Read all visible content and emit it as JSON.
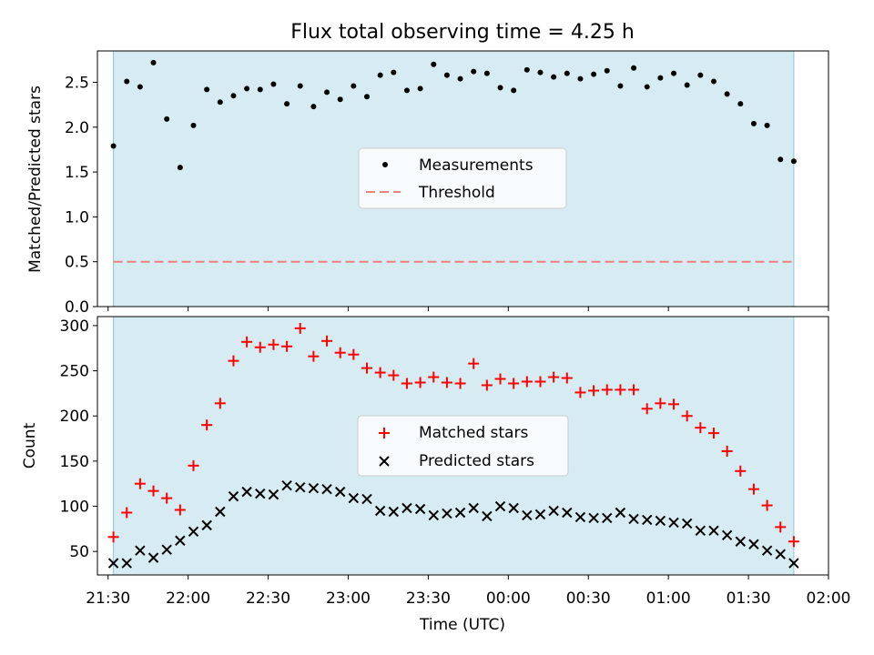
{
  "chart_data": [
    {
      "type": "scatter",
      "title": "Flux total observing time = 4.25 h",
      "xlabel": "",
      "ylabel": "Matched/Predicted stars",
      "ylim": [
        0,
        2.85
      ],
      "yticks": [
        0.0,
        0.5,
        1.0,
        1.5,
        2.0,
        2.5
      ],
      "ytick_labels": [
        "0.0",
        "0.5",
        "1.0",
        "1.5",
        "2.0",
        "2.5"
      ],
      "threshold": 0.5,
      "legend_placement": "center",
      "legend": [
        {
          "label": "Measurements",
          "marker": "dot",
          "color": "#000000"
        },
        {
          "label": "Threshold",
          "marker": "dashed-line",
          "color": "#f08080"
        }
      ],
      "shaded_region": {
        "start": "21:32",
        "end": "01:47",
        "color": "#add8e6"
      },
      "series": [
        {
          "name": "Measurements",
          "values": [
            1.79,
            2.51,
            2.45,
            2.72,
            2.09,
            1.55,
            2.02,
            2.42,
            2.28,
            2.35,
            2.43,
            2.42,
            2.48,
            2.26,
            2.46,
            2.23,
            2.39,
            2.31,
            2.46,
            2.34,
            2.58,
            2.61,
            2.41,
            2.43,
            2.7,
            2.58,
            2.54,
            2.62,
            2.6,
            2.44,
            2.41,
            2.64,
            2.61,
            2.56,
            2.6,
            2.54,
            2.59,
            2.63,
            2.46,
            2.66,
            2.45,
            2.55,
            2.6,
            2.47,
            2.58,
            2.51,
            2.37,
            2.26,
            2.04,
            2.02,
            1.64,
            1.62
          ]
        }
      ]
    },
    {
      "type": "scatter",
      "title": "",
      "xlabel": "Time (UTC)",
      "ylabel": "Count",
      "ylim": [
        24,
        310
      ],
      "yticks": [
        50,
        100,
        150,
        200,
        250,
        300
      ],
      "ytick_labels": [
        "50",
        "100",
        "150",
        "200",
        "250",
        "300"
      ],
      "legend_placement": "center",
      "legend": [
        {
          "label": "Matched stars",
          "marker": "plus",
          "color": "#ff0000"
        },
        {
          "label": "Predicted stars",
          "marker": "x",
          "color": "#000000"
        }
      ],
      "shaded_region": {
        "start": "21:32",
        "end": "01:47",
        "color": "#add8e6"
      },
      "series": [
        {
          "name": "Matched stars",
          "values": [
            66,
            93,
            125,
            117,
            109,
            96,
            145,
            190,
            214,
            261,
            282,
            276,
            279,
            277,
            297,
            266,
            283,
            270,
            268,
            253,
            248,
            245,
            236,
            237,
            243,
            237,
            236,
            258,
            234,
            241,
            236,
            238,
            238,
            243,
            242,
            226,
            228,
            229,
            229,
            229,
            208,
            214,
            213,
            200,
            187,
            181,
            161,
            139,
            119,
            101,
            77,
            61
          ]
        },
        {
          "name": "Predicted stars",
          "values": [
            37,
            37,
            51,
            43,
            52,
            62,
            72,
            79,
            94,
            111,
            116,
            114,
            113,
            123,
            121,
            120,
            119,
            116,
            109,
            108,
            95,
            94,
            98,
            97,
            90,
            92,
            93,
            98,
            89,
            100,
            98,
            90,
            91,
            95,
            93,
            88,
            87,
            87,
            93,
            86,
            85,
            84,
            82,
            81,
            73,
            73,
            68,
            61,
            58,
            51,
            47,
            37
          ]
        }
      ]
    }
  ],
  "time_axis": {
    "start": "21:32",
    "end": "01:47",
    "view_start": "21:26",
    "view_end": "02:00",
    "tick_times": [
      "21:30",
      "22:00",
      "22:30",
      "23:00",
      "23:30",
      "00:00",
      "00:30",
      "01:00",
      "01:30",
      "02:00"
    ],
    "tick_labels": [
      "21:30",
      "22:00",
      "22:30",
      "23:00",
      "23:30",
      "00:00",
      "00:30",
      "01:00",
      "01:30",
      "02:00"
    ]
  }
}
